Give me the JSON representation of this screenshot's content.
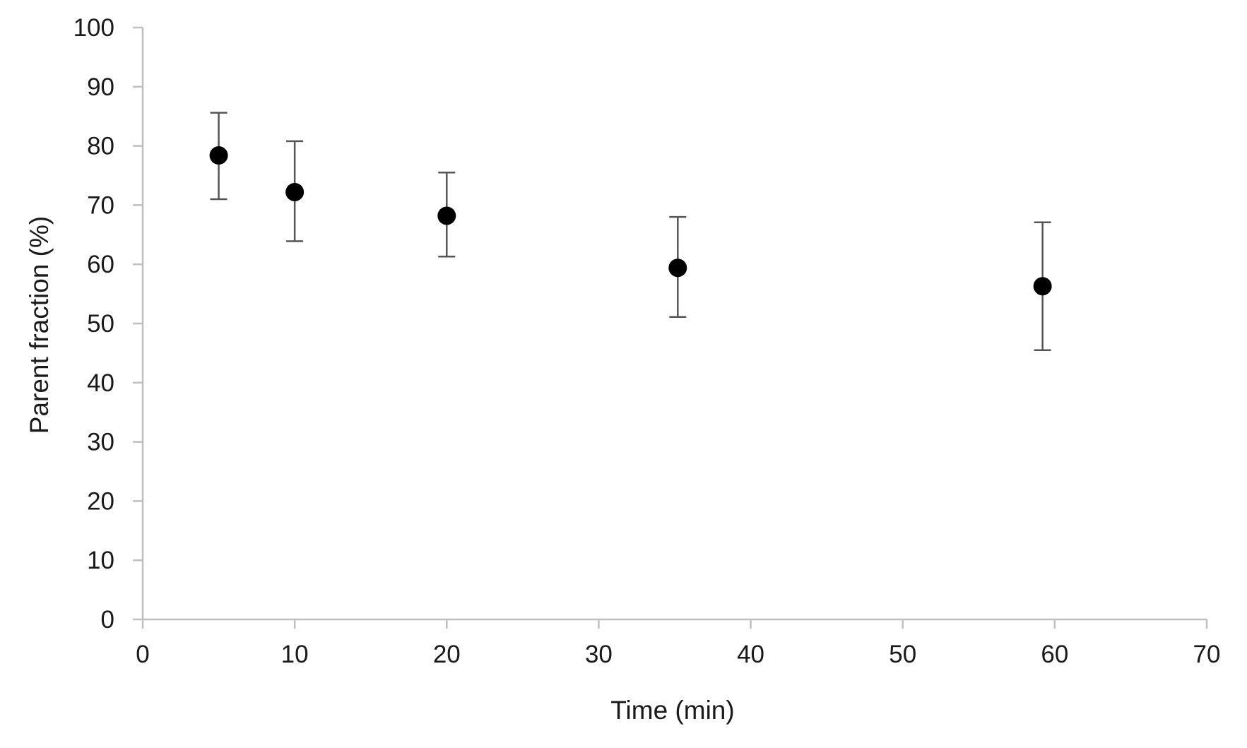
{
  "chart_data": {
    "type": "scatter",
    "title": "",
    "xlabel": "Time (min)",
    "ylabel": "Parent fraction (%)",
    "xlim": [
      0,
      70
    ],
    "ylim": [
      0,
      100
    ],
    "x_ticks": [
      0,
      10,
      20,
      30,
      40,
      50,
      60,
      70
    ],
    "y_ticks": [
      0,
      10,
      20,
      30,
      40,
      50,
      60,
      70,
      80,
      90,
      100
    ],
    "grid": false,
    "legend": "none",
    "marker_color": "#000000",
    "errorbar_color": "#555555",
    "axis_color": "#bfbfbf",
    "series": [
      {
        "x": [
          5,
          10,
          20,
          35.2,
          59.2
        ],
        "y": [
          78.4,
          72.2,
          68.2,
          59.4,
          56.3
        ],
        "y_err_upper": [
          85.6,
          80.8,
          75.5,
          68.0,
          67.1
        ],
        "y_err_lower": [
          71.0,
          63.9,
          61.3,
          51.1,
          45.5
        ]
      }
    ]
  }
}
